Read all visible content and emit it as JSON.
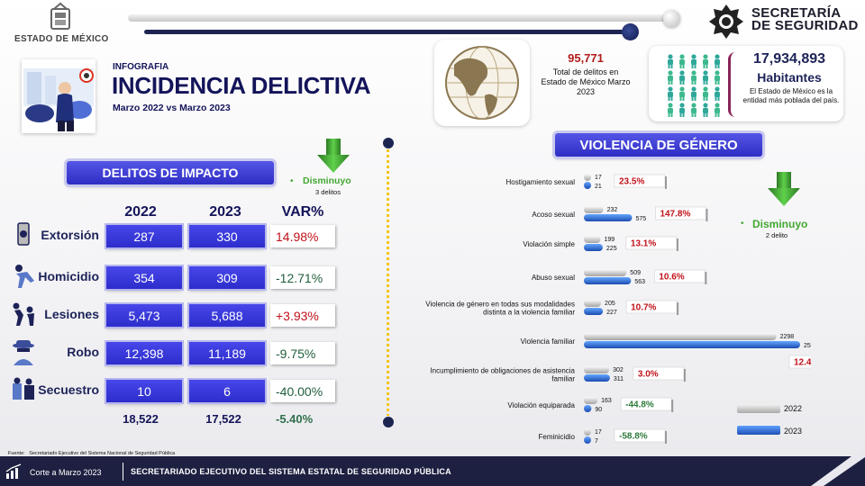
{
  "colors": {
    "navy": "#1d2040",
    "accent_blue": "#3333d6",
    "bar_2022": "#c7c7c7",
    "bar_2023": "#2f6fd8",
    "increase": "#c1121a",
    "decrease": "#43a832"
  },
  "header": {
    "gov_name": "ESTADO DE MÉXICO",
    "secretaria_line1": "SECRETARÍA",
    "secretaria_line2": "DE SEGURIDAD",
    "supertitle": "INFOGRAFIA",
    "title": "INCIDENCIA DELICTIVA",
    "subtitle": "Marzo  2022 vs Marzo  2023"
  },
  "total": {
    "number": "95,771",
    "description": "Total de delitos en Estado de México Marzo 2023"
  },
  "population": {
    "number": "17,934,893",
    "label": "Habitantes",
    "description": "El Estado de México es la entidad más poblada del país."
  },
  "impacto": {
    "section_title": "DELITOS DE IMPACTO",
    "decrease_label": "Disminuyo",
    "decrease_sub": "3 delitos",
    "headers": {
      "y2022": "2022",
      "y2023": "2023",
      "var": "VAR%"
    },
    "rows": [
      {
        "name": "Extorsión",
        "icon": "phone-alert-icon",
        "v2022": "287",
        "v2023": "330",
        "var": "14.98%",
        "trend": "up"
      },
      {
        "name": "Homicidio",
        "icon": "victim-icon",
        "v2022": "354",
        "v2023": "309",
        "var": "-12.71%",
        "trend": "down"
      },
      {
        "name": "Lesiones",
        "icon": "assault-icon",
        "v2022": "5,473",
        "v2023": "5,688",
        "var": "+3.93%",
        "trend": "up"
      },
      {
        "name": "Robo",
        "icon": "thief-icon",
        "v2022": "12,398",
        "v2023": "11,189",
        "var": "-9.75%",
        "trend": "down"
      },
      {
        "name": "Secuestro",
        "icon": "kidnapping-icon",
        "v2022": "10",
        "v2023": "6",
        "var": "-40.00%",
        "trend": "down"
      }
    ],
    "totals": {
      "t2022": "18,522",
      "t2023": "17,522",
      "var": "-5.40%"
    }
  },
  "violencia": {
    "section_title": "VIOLENCIA DE GÉNERO",
    "decrease_label": "Disminuyo",
    "decrease_sub": "2 delito",
    "legend": [
      "2022",
      "2023"
    ]
  },
  "chart_data": {
    "type": "bar",
    "orientation": "horizontal",
    "categories": [
      "Hostigamiento sexual",
      "Acoso sexual",
      "Violación simple",
      "Abuso sexual",
      "Violencia de género en todas sus modalidades distinta a la violencia familiar",
      "Violencia familiar",
      "Incumplimiento de obligaciones de asistencia familiar",
      "Violación equiparada",
      "Feminicidio"
    ],
    "series": [
      {
        "name": "2022",
        "values": [
          17,
          232,
          199,
          509,
          205,
          2298,
          302,
          163,
          17
        ]
      },
      {
        "name": "2023",
        "values": [
          21,
          575,
          225,
          563,
          227,
          2582,
          311,
          90,
          7
        ]
      }
    ],
    "variation": [
      "23.5%",
      "147.8%",
      "13.1%",
      "10.6%",
      "10.7%",
      "12.4%",
      "3.0%",
      "-44.8%",
      "-58.8%"
    ],
    "trend": [
      "up",
      "up",
      "up",
      "up",
      "up",
      "up",
      "up",
      "down",
      "down"
    ],
    "legend_position": "bottom-right"
  },
  "footer": {
    "source_label": "Fuente:",
    "source_text": "Secretariado Ejecutivo del Sistema Nacional de Seguridad Pública",
    "cutoff": "Corte a  Marzo  2023",
    "title": "SECRETARIADO EJECUTIVO DEL SISTEMA ESTATAL DE SEGURIDAD PÚBLICA"
  }
}
